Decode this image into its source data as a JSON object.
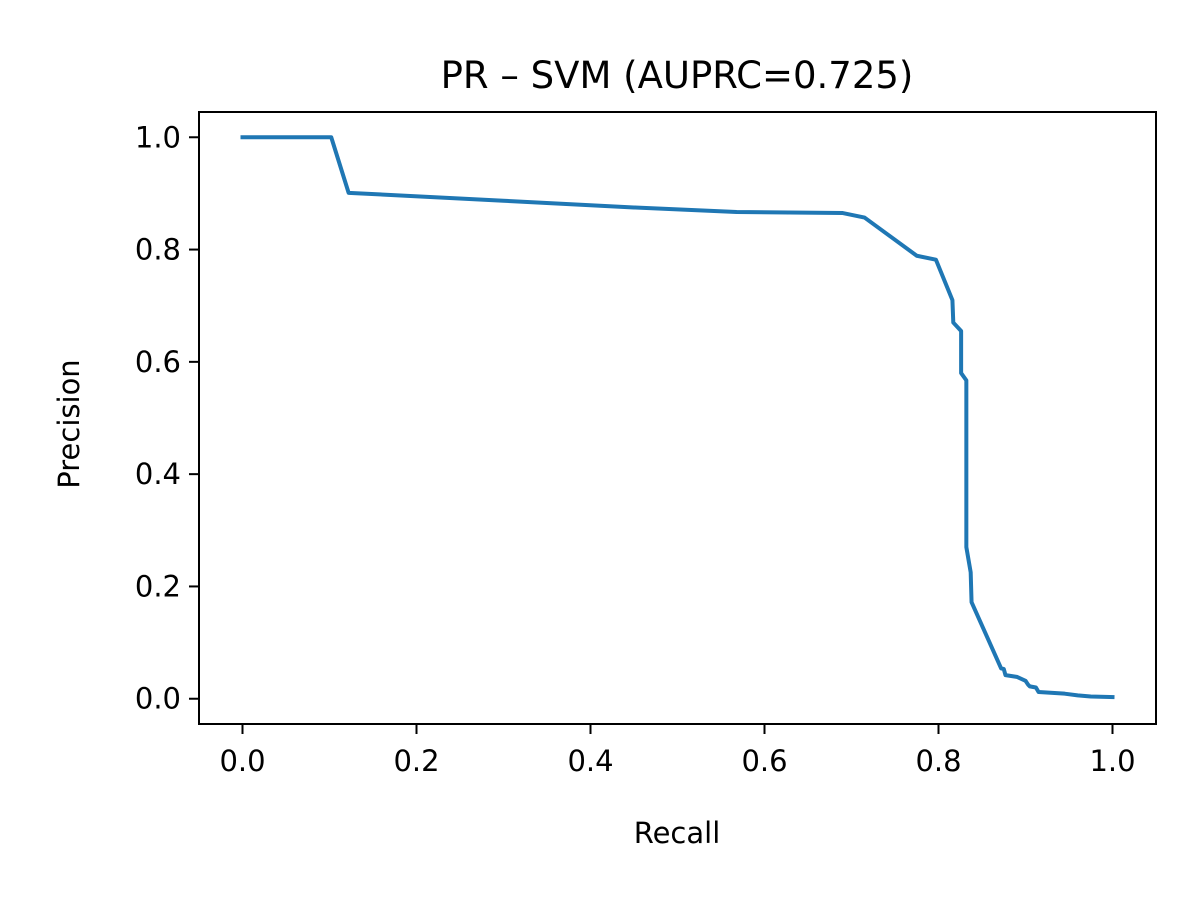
{
  "chart_data": {
    "type": "line",
    "title": "PR – SVM (AUPRC=0.725)",
    "xlabel": "Recall",
    "ylabel": "Precision",
    "xlim": [
      -0.05,
      1.05
    ],
    "ylim": [
      -0.045,
      1.045
    ],
    "xticks": [
      0.0,
      0.2,
      0.4,
      0.6,
      0.8,
      1.0
    ],
    "xtick_labels": [
      "0.0",
      "0.2",
      "0.4",
      "0.6",
      "0.8",
      "1.0"
    ],
    "yticks": [
      0.0,
      0.2,
      0.4,
      0.6,
      0.8,
      1.0
    ],
    "ytick_labels": [
      "0.0",
      "0.2",
      "0.4",
      "0.6",
      "0.8",
      "1.0"
    ],
    "grid": false,
    "legend": "none",
    "series": [
      {
        "color": "#1f77b4",
        "x": [
          0.0,
          0.102,
          0.122,
          0.3,
          0.45,
          0.568,
          0.69,
          0.715,
          0.775,
          0.797,
          0.816,
          0.817,
          0.826,
          0.826,
          0.832,
          0.832,
          0.837,
          0.838,
          0.872,
          0.875,
          0.877,
          0.89,
          0.9,
          0.903,
          0.905,
          0.912,
          0.915,
          0.945,
          0.96,
          0.975,
          1.0
        ],
        "y": [
          1.0,
          1.0,
          0.901,
          0.887,
          0.875,
          0.867,
          0.865,
          0.857,
          0.789,
          0.782,
          0.71,
          0.67,
          0.655,
          0.58,
          0.567,
          0.27,
          0.225,
          0.172,
          0.054,
          0.053,
          0.042,
          0.039,
          0.032,
          0.025,
          0.022,
          0.02,
          0.012,
          0.009,
          0.006,
          0.004,
          0.003
        ]
      }
    ]
  }
}
